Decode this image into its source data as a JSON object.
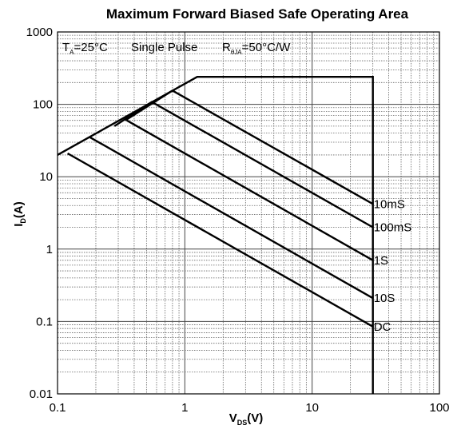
{
  "chart_data": {
    "type": "line",
    "title": "Maximum Forward Biased Safe Operating Area",
    "xlabel": {
      "main": "V",
      "sub": "DS",
      "suffix": "(V)"
    },
    "ylabel": {
      "main": "I",
      "sub": "D",
      "suffix": "(A)"
    },
    "x_scale": "log",
    "y_scale": "log",
    "xlim": [
      0.1,
      100
    ],
    "ylim": [
      0.01,
      1000
    ],
    "grid": true,
    "x_ticks": [
      {
        "value": 0.1,
        "label": "0.1"
      },
      {
        "value": 1,
        "label": "1"
      },
      {
        "value": 10,
        "label": "10"
      },
      {
        "value": 100,
        "label": "100"
      }
    ],
    "y_ticks": [
      {
        "value": 0.01,
        "label": "0.01"
      },
      {
        "value": 0.1,
        "label": "0.1"
      },
      {
        "value": 1,
        "label": "1"
      },
      {
        "value": 10,
        "label": "10"
      },
      {
        "value": 100,
        "label": "100"
      },
      {
        "value": 1000,
        "label": "1000"
      }
    ],
    "annotation": {
      "ta": {
        "main": "T",
        "sub": "A",
        "rest": "=25°C"
      },
      "pulse": "Single Pulse",
      "rth": {
        "main": "R",
        "sub": "θJA",
        "rest": "=50°C/W"
      }
    },
    "series": [
      {
        "name": "10mS",
        "points": [
          [
            0.34,
            60
          ],
          [
            0.8,
            155
          ],
          [
            30,
            4.2
          ]
        ]
      },
      {
        "name": "100mS",
        "points": [
          [
            0.28,
            50
          ],
          [
            0.55,
            108
          ],
          [
            30,
            2.0
          ]
        ]
      },
      {
        "name": "1S",
        "points": [
          [
            0.35,
            60
          ],
          [
            30,
            0.7
          ]
        ]
      },
      {
        "name": "10S",
        "points": [
          [
            0.18,
            35
          ],
          [
            30,
            0.21
          ]
        ]
      },
      {
        "name": "DC",
        "points": [
          [
            0.12,
            21
          ],
          [
            30,
            0.085
          ]
        ]
      }
    ],
    "boundary": [
      [
        0.1,
        20
      ],
      [
        1.25,
        240
      ],
      [
        30,
        240
      ],
      [
        30,
        0.01
      ]
    ]
  }
}
